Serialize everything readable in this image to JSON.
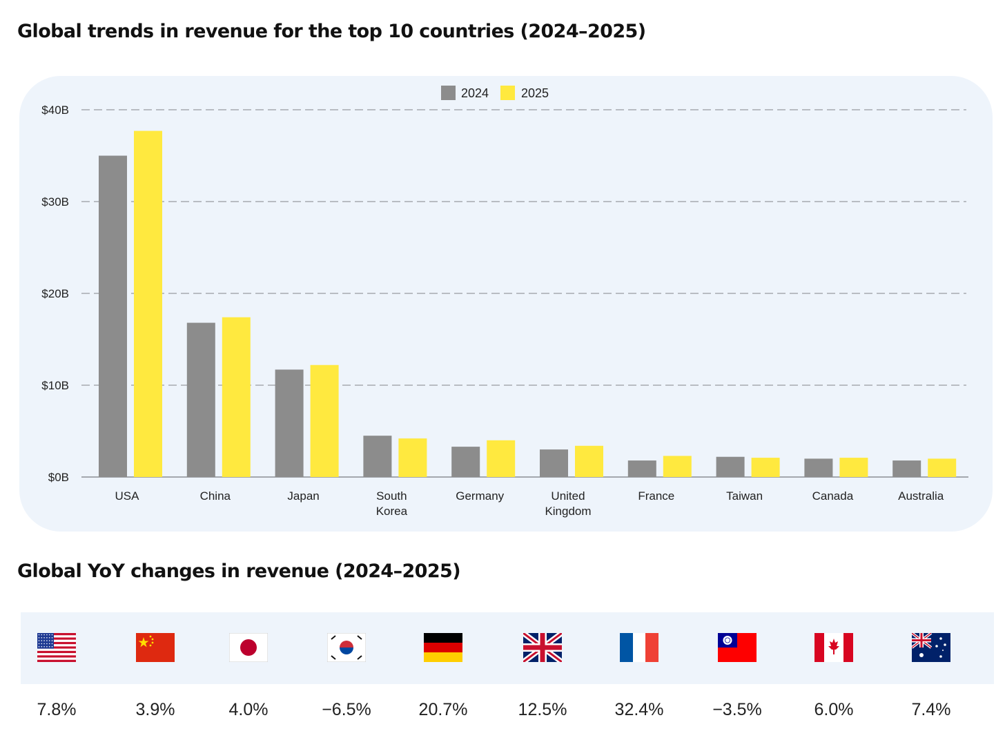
{
  "titles": {
    "chart": "Global trends in revenue for the top 10 countries (2024–2025)",
    "yoy": "Global YoY changes in revenue (2024–2025)"
  },
  "colors": {
    "s2024": "#8c8c8c",
    "s2025": "#ffe93f",
    "panel": "#eef4fb",
    "grid": "#b8bcc2"
  },
  "chart_data": {
    "type": "bar",
    "categories": [
      "USA",
      "China",
      "Japan",
      "South Korea",
      "Germany",
      "United Kingdom",
      "France",
      "Taiwan",
      "Canada",
      "Australia"
    ],
    "category_lines": [
      [
        "USA"
      ],
      [
        "China"
      ],
      [
        "Japan"
      ],
      [
        "South",
        "Korea"
      ],
      [
        "Germany"
      ],
      [
        "United",
        "Kingdom"
      ],
      [
        "France"
      ],
      [
        "Taiwan"
      ],
      [
        "Canada"
      ],
      [
        "Australia"
      ]
    ],
    "series": [
      {
        "name": "2024",
        "color": "#8c8c8c",
        "values": [
          35.0,
          16.8,
          11.7,
          4.5,
          3.3,
          3.0,
          1.8,
          2.2,
          2.0,
          1.8
        ]
      },
      {
        "name": "2025",
        "color": "#ffe93f",
        "values": [
          37.7,
          17.4,
          12.2,
          4.2,
          4.0,
          3.4,
          2.3,
          2.1,
          2.1,
          2.0
        ]
      }
    ],
    "ylim": [
      0,
      40
    ],
    "yticks": [
      0,
      10,
      20,
      30,
      40
    ],
    "ytick_labels": [
      "$0B",
      "$10B",
      "$20B",
      "$30B",
      "$40B"
    ],
    "xlabel": "",
    "ylabel": "",
    "grid": true,
    "legend_position": "top-center"
  },
  "yoy": [
    {
      "country": "USA",
      "flag_icon": "us-flag-icon",
      "change": "7.8%"
    },
    {
      "country": "China",
      "flag_icon": "china-flag-icon",
      "change": "3.9%"
    },
    {
      "country": "Japan",
      "flag_icon": "japan-flag-icon",
      "change": "4.0%"
    },
    {
      "country": "South Korea",
      "flag_icon": "south-korea-flag-icon",
      "change": "−6.5%"
    },
    {
      "country": "Germany",
      "flag_icon": "germany-flag-icon",
      "change": "20.7%"
    },
    {
      "country": "United Kingdom",
      "flag_icon": "uk-flag-icon",
      "change": "12.5%"
    },
    {
      "country": "France",
      "flag_icon": "france-flag-icon",
      "change": "32.4%"
    },
    {
      "country": "Taiwan",
      "flag_icon": "taiwan-flag-icon",
      "change": "−3.5%"
    },
    {
      "country": "Canada",
      "flag_icon": "canada-flag-icon",
      "change": "6.0%"
    },
    {
      "country": "Australia",
      "flag_icon": "australia-flag-icon",
      "change": "7.4%"
    }
  ]
}
